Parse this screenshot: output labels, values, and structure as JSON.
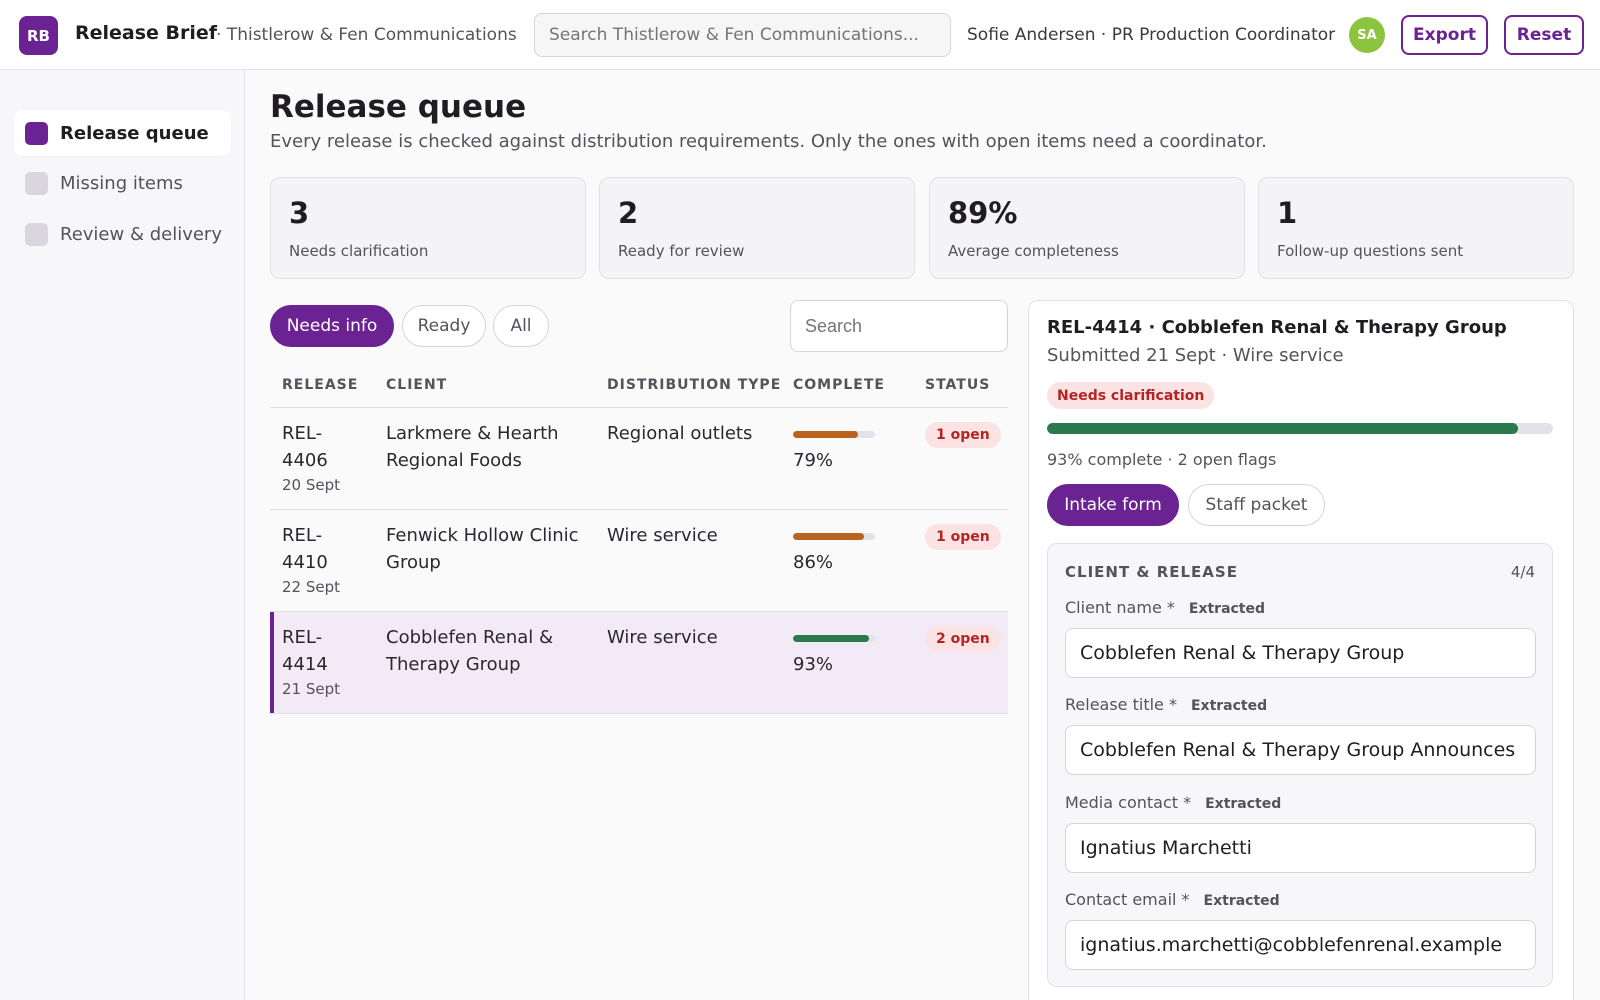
{
  "app": {
    "logo": "RB",
    "name": "Release Brief",
    "org": "· Thistlerow & Fen Communications",
    "search_placeholder": "Search Thistlerow & Fen Communications...",
    "user": "Sofie Andersen · PR Production Coordinator",
    "avatar": "SA",
    "export_label": "Export",
    "reset_label": "Reset"
  },
  "sidebar": {
    "items": [
      {
        "label": "Release queue",
        "active": true
      },
      {
        "label": "Missing items",
        "active": false
      },
      {
        "label": "Review & delivery",
        "active": false
      }
    ]
  },
  "main": {
    "title": "Release queue",
    "subtitle": "Every release is checked against distribution requirements. Only the ones with open items need a coordinator.",
    "stats": [
      {
        "value": "3",
        "label": "Needs clarification"
      },
      {
        "value": "2",
        "label": "Ready for review"
      },
      {
        "value": "89%",
        "label": "Average completeness"
      },
      {
        "value": "1",
        "label": "Follow-up questions sent"
      }
    ],
    "filters": [
      {
        "label": "Needs info",
        "active": true
      },
      {
        "label": "Ready",
        "active": false
      },
      {
        "label": "All",
        "active": false
      }
    ],
    "table_search_placeholder": "Search",
    "columns": [
      "RELEASE",
      "CLIENT",
      "DISTRIBUTION TYPE",
      "COMPLETE",
      "STATUS"
    ],
    "rows": [
      {
        "id_line1": "REL-",
        "id_line2": "4406",
        "date": "20 Sept",
        "client_line1": "Larkmere & Hearth",
        "client_line2": "Regional Foods",
        "distribution": "Regional outlets",
        "complete": 0.79,
        "complete_label": "79%",
        "bar_color": "#b8641f",
        "status": "1 open",
        "selected": false
      },
      {
        "id_line1": "REL-",
        "id_line2": "4410",
        "date": "22 Sept",
        "client_line1": "Fenwick Hollow Clinic",
        "client_line2": "Group",
        "distribution": "Wire service",
        "complete": 0.86,
        "complete_label": "86%",
        "bar_color": "#b8641f",
        "status": "1 open",
        "selected": false
      },
      {
        "id_line1": "REL-",
        "id_line2": "4414",
        "date": "21 Sept",
        "client_line1": "Cobblefen Renal &",
        "client_line2": "Therapy Group",
        "distribution": "Wire service",
        "complete": 0.93,
        "complete_label": "93%",
        "bar_color": "#2b7a4b",
        "status": "2 open",
        "selected": true
      }
    ]
  },
  "detail": {
    "title": "REL-4414 · Cobblefen Renal & Therapy Group",
    "subtitle": "Submitted 21 Sept · Wire service",
    "badge": "Needs clarification",
    "progress": 0.93,
    "meta": "93% complete · 2 open flags",
    "tabs": [
      {
        "label": "Intake form",
        "active": true
      },
      {
        "label": "Staff packet",
        "active": false
      }
    ],
    "section_title": "CLIENT & RELEASE",
    "section_count": "4/4",
    "fields": [
      {
        "label": "Client name *",
        "tag": "Extracted",
        "value": "Cobblefen Renal & Therapy Group"
      },
      {
        "label": "Release title *",
        "tag": "Extracted",
        "value": "Cobblefen Renal & Therapy Group Announces N"
      },
      {
        "label": "Media contact *",
        "tag": "Extracted",
        "value": "Ignatius Marchetti"
      },
      {
        "label": "Contact email *",
        "tag": "Extracted",
        "value": "ignatius.marchetti@cobblefenrenal.example"
      }
    ]
  },
  "colors": {
    "accent": "#6b2393",
    "success": "#2b7a4b",
    "warning": "#b8641f",
    "danger": "#b42424",
    "avatar": "#8cc43f"
  }
}
